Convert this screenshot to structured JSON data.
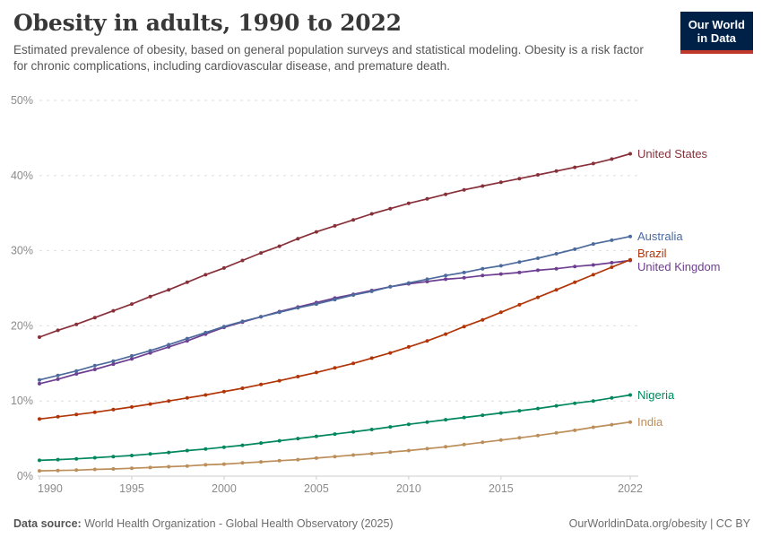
{
  "header": {
    "title": "Obesity in adults, 1990 to 2022",
    "subtitle": "Estimated prevalence of obesity, based on general population surveys and statistical modeling. Obesity is a risk factor for chronic complications, including cardiovascular disease, and premature death.",
    "logo": {
      "line1": "Our World",
      "line2": "in Data",
      "bg_color": "#002147",
      "accent_color": "#C0392B"
    }
  },
  "chart_data": {
    "type": "line",
    "title": "Obesity in adults, 1990 to 2022",
    "xlabel": "",
    "ylabel": "",
    "ylim": [
      0,
      50
    ],
    "yticks": [
      0,
      10,
      20,
      30,
      40,
      50
    ],
    "ytick_suffix": "%",
    "xticks": [
      1990,
      1995,
      2000,
      2005,
      2010,
      2015,
      2022
    ],
    "grid": "horizontal-dashed",
    "legend_position": "right-of-line-ends",
    "axis_color": "#cccccc",
    "grid_color": "#dddddd",
    "tick_label_color": "#8b8b8b",
    "x": [
      1990,
      1991,
      1992,
      1993,
      1994,
      1995,
      1996,
      1997,
      1998,
      1999,
      2000,
      2001,
      2002,
      2003,
      2004,
      2005,
      2006,
      2007,
      2008,
      2009,
      2010,
      2011,
      2012,
      2013,
      2014,
      2015,
      2016,
      2017,
      2018,
      2019,
      2020,
      2021,
      2022
    ],
    "series": [
      {
        "name": "United States",
        "color": "#883039",
        "values": [
          18.5,
          19.4,
          20.2,
          21.1,
          22.0,
          22.9,
          23.9,
          24.8,
          25.8,
          26.8,
          27.7,
          28.7,
          29.7,
          30.6,
          31.6,
          32.5,
          33.3,
          34.1,
          34.9,
          35.6,
          36.3,
          36.9,
          37.5,
          38.1,
          38.6,
          39.1,
          39.6,
          40.1,
          40.6,
          41.1,
          41.6,
          42.2,
          42.9
        ]
      },
      {
        "name": "United Kingdom",
        "color": "#6D3E91",
        "values": [
          12.3,
          12.9,
          13.6,
          14.2,
          14.9,
          15.6,
          16.4,
          17.2,
          18.0,
          18.9,
          19.8,
          20.5,
          21.2,
          21.9,
          22.5,
          23.1,
          23.7,
          24.2,
          24.7,
          25.2,
          25.6,
          25.9,
          26.2,
          26.4,
          26.7,
          26.9,
          27.1,
          27.4,
          27.6,
          27.9,
          28.1,
          28.4,
          28.7
        ]
      },
      {
        "name": "Australia",
        "color": "#4C6A9C",
        "values": [
          12.8,
          13.4,
          14.0,
          14.7,
          15.3,
          16.0,
          16.7,
          17.5,
          18.3,
          19.1,
          19.9,
          20.6,
          21.2,
          21.8,
          22.4,
          22.9,
          23.5,
          24.1,
          24.6,
          25.2,
          25.7,
          26.2,
          26.7,
          27.1,
          27.6,
          28.0,
          28.5,
          29.0,
          29.6,
          30.2,
          30.9,
          31.4,
          31.9
        ]
      },
      {
        "name": "Brazil",
        "color": "#B13507",
        "values": [
          7.6,
          7.9,
          8.2,
          8.5,
          8.85,
          9.2,
          9.6,
          10.0,
          10.4,
          10.8,
          11.25,
          11.7,
          12.2,
          12.7,
          13.25,
          13.8,
          14.4,
          15.0,
          15.7,
          16.4,
          17.2,
          18.0,
          18.9,
          19.9,
          20.8,
          21.8,
          22.8,
          23.8,
          24.8,
          25.8,
          26.8,
          27.8,
          28.8
        ]
      },
      {
        "name": "Nigeria",
        "color": "#00875E",
        "values": [
          2.1,
          2.2,
          2.3,
          2.45,
          2.6,
          2.75,
          2.95,
          3.15,
          3.4,
          3.6,
          3.85,
          4.1,
          4.4,
          4.7,
          5.0,
          5.3,
          5.6,
          5.9,
          6.2,
          6.55,
          6.9,
          7.2,
          7.5,
          7.8,
          8.1,
          8.4,
          8.7,
          9.0,
          9.35,
          9.7,
          10.0,
          10.4,
          10.8
        ]
      },
      {
        "name": "India",
        "color": "#BC8E5A",
        "values": [
          0.7,
          0.75,
          0.8,
          0.9,
          0.95,
          1.05,
          1.15,
          1.25,
          1.35,
          1.5,
          1.6,
          1.75,
          1.9,
          2.05,
          2.2,
          2.4,
          2.6,
          2.8,
          3.0,
          3.2,
          3.4,
          3.65,
          3.9,
          4.2,
          4.5,
          4.8,
          5.1,
          5.4,
          5.75,
          6.1,
          6.5,
          6.85,
          7.2
        ]
      }
    ]
  },
  "footer": {
    "datasource_label": "Data source:",
    "datasource_text": " World Health Organization - Global Health Observatory (2025)",
    "rights": "OurWorldinData.org/obesity | CC BY"
  }
}
